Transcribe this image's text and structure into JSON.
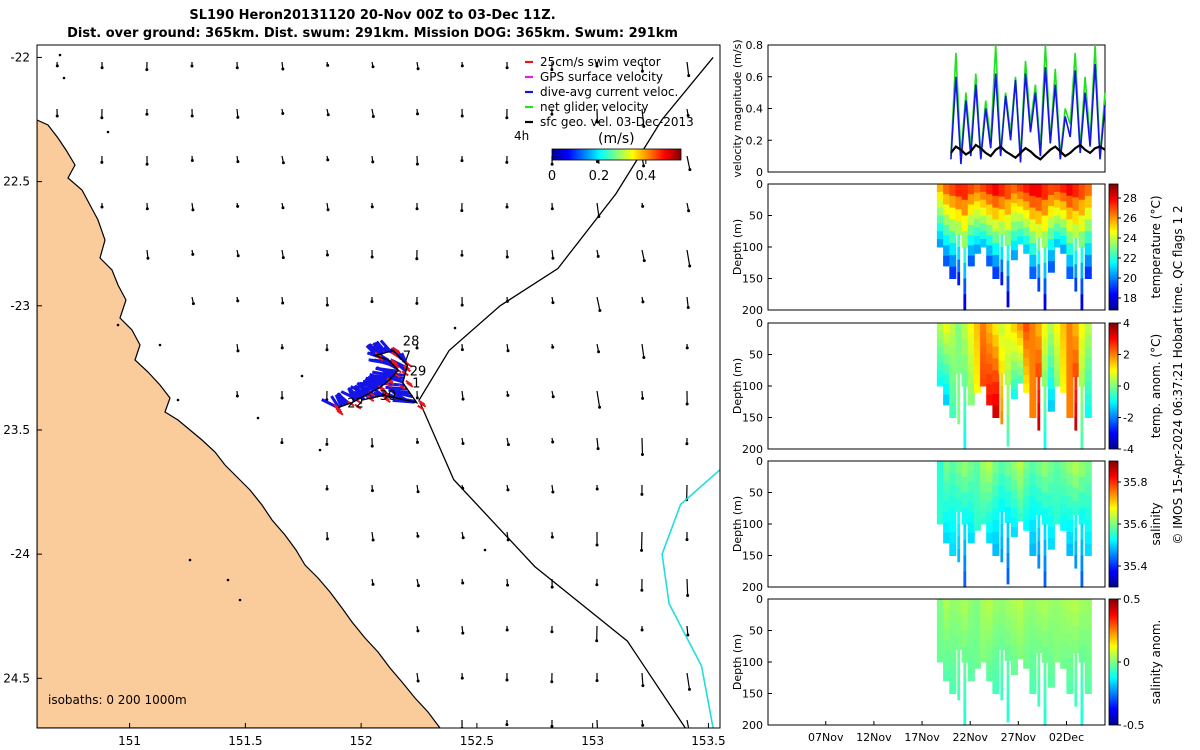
{
  "header": {
    "title_line1": "SL190 Heron20131120 20-Nov 00Z to 03-Dec 11Z.",
    "title_line2": "Dist. over ground: 365km. Dist. swum: 291km. Mission DOG: 365km. Swum: 291km"
  },
  "credit": "© IMOS 15-Apr-2024 06:37:21 Hobart time. QC flags 1  2",
  "colors": {
    "land": "#FACB9B",
    "cyan": "#22DDDD",
    "swim": "#E8141E",
    "gps": "#E020E0",
    "dive": "#1414E6",
    "net": "#21E021"
  },
  "chart_data": [
    {
      "type": "map",
      "name": "glider-track-map",
      "xlim": [
        150.6,
        153.55
      ],
      "ylim": [
        -24.7,
        -21.95
      ],
      "xticks": [
        151,
        151.5,
        152,
        152.5,
        153,
        153.5
      ],
      "xtick_labels": [
        "151",
        "151.5",
        "152",
        "152.5",
        "153",
        "153.5"
      ],
      "yticks": [
        -22,
        -22.5,
        -23,
        -23.5,
        -24,
        -24.5
      ],
      "ytick_labels": [
        "-22",
        "22.5",
        "-23",
        "23.5",
        "-24",
        "24.5"
      ],
      "legend": [
        {
          "label": "25cm/s swim vector",
          "color": "#E8141E"
        },
        {
          "label": "GPS surface velocity",
          "color": "#E020E0"
        },
        {
          "label": "dive-avg current veloc.",
          "color": "#1414E6"
        },
        {
          "label": "net glider velocity",
          "color": "#21E021"
        },
        {
          "label": "sfc geo. vel. 03-Dec-2013",
          "color": "#000000"
        }
      ],
      "legend_time_label": "4h",
      "colorbar": {
        "title": "(m/s)",
        "ticks": [
          0,
          0.2,
          0.4
        ],
        "tick_labels": [
          "0",
          "0.2",
          "0.4"
        ],
        "range": [
          0,
          0.55
        ]
      },
      "isobaths_label": "isobaths: 0   200  1000m",
      "track_day_labels": [
        {
          "text": "28",
          "lon": 152.18,
          "lat": -23.16
        },
        {
          "text": "7",
          "lon": 152.18,
          "lat": -23.22
        },
        {
          "text": "29",
          "lon": 152.21,
          "lat": -23.28
        },
        {
          "text": "1",
          "lon": 152.22,
          "lat": -23.33
        },
        {
          "text": "30",
          "lon": 152.08,
          "lat": -23.38
        },
        {
          "text": "22",
          "lon": 151.94,
          "lat": -23.41
        }
      ],
      "track_points": [
        [
          151.9,
          -23.41
        ],
        [
          151.96,
          -23.39
        ],
        [
          152.02,
          -23.36
        ],
        [
          152.08,
          -23.33
        ],
        [
          152.12,
          -23.3
        ],
        [
          152.16,
          -23.26
        ],
        [
          152.12,
          -23.22
        ],
        [
          152.06,
          -23.2
        ],
        [
          152.14,
          -23.18
        ],
        [
          152.2,
          -23.24
        ],
        [
          152.18,
          -23.31
        ],
        [
          152.24,
          -23.39
        ],
        [
          152.1,
          -23.36
        ],
        [
          152.0,
          -23.38
        ]
      ],
      "isobath_1000m": [
        [
          153.52,
          -22.0
        ],
        [
          153.3,
          -22.25
        ],
        [
          153.1,
          -22.55
        ],
        [
          152.85,
          -22.85
        ],
        [
          152.6,
          -23.0
        ],
        [
          152.38,
          -23.18
        ],
        [
          152.25,
          -23.38
        ],
        [
          152.4,
          -23.7
        ],
        [
          152.75,
          -24.05
        ],
        [
          153.15,
          -24.35
        ],
        [
          153.4,
          -24.7
        ]
      ],
      "cyan_contour": [
        [
          153.55,
          -23.66
        ],
        [
          153.38,
          -23.8
        ],
        [
          153.3,
          -24.0
        ],
        [
          153.33,
          -24.2
        ],
        [
          153.47,
          -24.45
        ],
        [
          153.52,
          -24.7
        ]
      ]
    },
    {
      "type": "line",
      "name": "velocity-magnitude",
      "ylabel": "velocity magnitude (m/s)",
      "ylim": [
        0,
        0.8
      ],
      "yticks": [
        0,
        0.2,
        0.4,
        0.6,
        0.8
      ],
      "ytick_labels": [
        "0",
        "0.2",
        "0.4",
        "0.6",
        "0.8"
      ],
      "x_range_days": [
        0,
        35
      ],
      "data_start_day": 19,
      "data_end_day": 35,
      "series": [
        {
          "name": "net glider velocity",
          "color": "#21E021",
          "values": [
            0.1,
            0.75,
            0.1,
            0.5,
            0.15,
            0.62,
            0.1,
            0.45,
            0.2,
            0.8,
            0.12,
            0.5,
            0.25,
            0.6,
            0.1,
            0.7,
            0.3,
            0.55,
            0.15,
            0.8,
            0.2,
            0.65,
            0.1,
            0.4,
            0.3,
            0.75,
            0.15,
            0.6,
            0.2,
            0.8,
            0.1,
            0.5
          ]
        },
        {
          "name": "dive-avg current veloc.",
          "color": "#1414E6",
          "values": [
            0.08,
            0.6,
            0.05,
            0.45,
            0.1,
            0.55,
            0.08,
            0.4,
            0.15,
            0.62,
            0.1,
            0.48,
            0.2,
            0.58,
            0.06,
            0.62,
            0.25,
            0.5,
            0.1,
            0.66,
            0.18,
            0.55,
            0.08,
            0.35,
            0.22,
            0.64,
            0.12,
            0.5,
            0.16,
            0.68,
            0.08,
            0.42
          ]
        },
        {
          "name": "sfc geo. vel.",
          "color": "#000000",
          "values": [
            0.12,
            0.16,
            0.14,
            0.11,
            0.13,
            0.17,
            0.15,
            0.12,
            0.1,
            0.14,
            0.16,
            0.13,
            0.11,
            0.09,
            0.12,
            0.15,
            0.13,
            0.1,
            0.08,
            0.11,
            0.14,
            0.16,
            0.13,
            0.1,
            0.12,
            0.15,
            0.17,
            0.14,
            0.12,
            0.15,
            0.16,
            0.14
          ]
        }
      ]
    },
    {
      "type": "heatmap",
      "name": "temperature-section",
      "ylabel": "Depth (m)",
      "cbar_label": "temperature (°C)",
      "ylim": [
        200,
        0
      ],
      "yticks": [
        0,
        50,
        100,
        150,
        200
      ],
      "ytick_labels": [
        "0",
        "50",
        "100",
        "150",
        "200"
      ],
      "cbar_range": [
        16.8,
        29.4
      ],
      "cbar_ticks": [
        18,
        20,
        22,
        24,
        26,
        28
      ],
      "cbar_tick_labels": [
        "18",
        "20",
        "22",
        "24",
        "26",
        "28"
      ],
      "colormap": "jet",
      "x_range_days": [
        0,
        35
      ],
      "data_start_day": 19,
      "profile_max_depth": [
        100,
        130,
        150,
        160,
        200,
        130,
        110,
        100,
        130,
        150,
        160,
        195,
        120,
        95,
        110,
        150,
        170,
        200,
        140,
        100,
        110,
        150,
        170,
        200,
        150
      ],
      "surface_values": [
        26,
        27,
        27.5,
        28,
        28,
        27.5,
        27,
        27.5,
        28,
        28.5,
        28,
        27.5,
        27,
        27.5,
        28,
        28.5,
        28.5,
        28,
        27.5,
        27.5,
        28,
        28.5,
        28,
        27.5,
        27
      ],
      "bottom_values": [
        20,
        19,
        18.5,
        18,
        17.5,
        19,
        20,
        20.5,
        19,
        18.5,
        18,
        17.5,
        20,
        21,
        20.5,
        19,
        18.5,
        17.5,
        19,
        20.5,
        20,
        19,
        18.5,
        17.5,
        18.5
      ]
    },
    {
      "type": "heatmap",
      "name": "temperature-anomaly-section",
      "ylabel": "Depth (m)",
      "cbar_label": "temp. anom. (°C)",
      "ylim": [
        200,
        0
      ],
      "yticks": [
        0,
        50,
        100,
        150,
        200
      ],
      "ytick_labels": [
        "0",
        "50",
        "100",
        "150",
        "200"
      ],
      "cbar_range": [
        -4,
        4
      ],
      "cbar_ticks": [
        -4,
        -2,
        0,
        2,
        4
      ],
      "cbar_tick_labels": [
        "-4",
        "-2",
        "0",
        "2",
        "4"
      ],
      "colormap": "jet",
      "x_range_days": [
        0,
        35
      ],
      "data_start_day": 19,
      "profile_max_depth": [
        100,
        130,
        150,
        160,
        200,
        130,
        110,
        100,
        130,
        150,
        160,
        195,
        120,
        95,
        110,
        150,
        170,
        200,
        140,
        100,
        110,
        150,
        170,
        200,
        150
      ],
      "surface_values": [
        0.5,
        1,
        0.5,
        0,
        0.5,
        1,
        1.5,
        2,
        1.5,
        1,
        0.5,
        1,
        1.5,
        2,
        2.5,
        2,
        1.5,
        1,
        0.5,
        1,
        1.5,
        2,
        1.5,
        1,
        0.5
      ],
      "bottom_values": [
        -1,
        -1.5,
        -0.5,
        0,
        -1,
        0,
        1,
        2.5,
        3,
        3.5,
        2,
        -0.5,
        -1,
        -0.5,
        1,
        2,
        3.5,
        -1,
        -1.5,
        0,
        1,
        2,
        3.5,
        -0.5,
        -1
      ]
    },
    {
      "type": "heatmap",
      "name": "salinity-section",
      "ylabel": "Depth (m)",
      "cbar_label": "salinity",
      "ylim": [
        200,
        0
      ],
      "yticks": [
        0,
        50,
        100,
        150,
        200
      ],
      "ytick_labels": [
        "0",
        "50",
        "100",
        "150",
        "200"
      ],
      "cbar_range": [
        35.3,
        35.9
      ],
      "cbar_ticks": [
        35.4,
        35.6,
        35.8
      ],
      "cbar_tick_labels": [
        "35.4",
        "35.6",
        "35.8"
      ],
      "colormap": "jet",
      "x_range_days": [
        0,
        35
      ],
      "data_start_day": 19,
      "profile_max_depth": [
        100,
        130,
        150,
        160,
        200,
        130,
        110,
        100,
        130,
        150,
        160,
        195,
        120,
        95,
        110,
        150,
        170,
        200,
        140,
        100,
        110,
        150,
        170,
        200,
        150
      ],
      "surface_values": [
        35.55,
        35.6,
        35.58,
        35.6,
        35.62,
        35.6,
        35.58,
        35.62,
        35.64,
        35.6,
        35.58,
        35.6,
        35.62,
        35.64,
        35.6,
        35.58,
        35.6,
        35.62,
        35.6,
        35.58,
        35.6,
        35.62,
        35.64,
        35.62,
        35.6
      ],
      "bottom_values": [
        35.55,
        35.5,
        35.5,
        35.48,
        35.42,
        35.5,
        35.55,
        35.55,
        35.5,
        35.48,
        35.46,
        35.42,
        35.5,
        35.55,
        35.52,
        35.48,
        35.45,
        35.42,
        35.5,
        35.55,
        35.52,
        35.48,
        35.45,
        35.42,
        35.5
      ]
    },
    {
      "type": "heatmap",
      "name": "salinity-anomaly-section",
      "ylabel": "Depth (m)",
      "cbar_label": "salinity anom.",
      "ylim": [
        200,
        0
      ],
      "yticks": [
        0,
        50,
        100,
        150,
        200
      ],
      "ytick_labels": [
        "0",
        "50",
        "100",
        "150",
        "200"
      ],
      "cbar_range": [
        -0.5,
        0.5
      ],
      "cbar_ticks": [
        -0.5,
        0,
        0.5
      ],
      "cbar_tick_labels": [
        "-0.5",
        "0",
        "0.5"
      ],
      "colormap": "jet",
      "x_range_days": [
        0,
        35
      ],
      "data_start_day": 19,
      "profile_max_depth": [
        100,
        130,
        150,
        160,
        200,
        130,
        110,
        100,
        130,
        150,
        160,
        195,
        120,
        95,
        110,
        150,
        170,
        200,
        140,
        100,
        110,
        150,
        170,
        200,
        150
      ],
      "surface_values": [
        0.0,
        0.05,
        0.02,
        0.03,
        0.05,
        0.02,
        0.0,
        0.04,
        0.06,
        0.03,
        0.02,
        0.04,
        0.05,
        0.06,
        0.03,
        0.02,
        0.04,
        0.05,
        0.03,
        0.02,
        0.04,
        0.05,
        0.06,
        0.04,
        0.03
      ],
      "bottom_values": [
        -0.02,
        -0.05,
        -0.05,
        -0.06,
        -0.1,
        -0.04,
        -0.02,
        0.0,
        -0.04,
        -0.06,
        -0.07,
        -0.1,
        -0.03,
        0.0,
        -0.02,
        -0.05,
        -0.07,
        -0.1,
        -0.04,
        0.0,
        -0.02,
        -0.05,
        -0.07,
        -0.1,
        -0.04
      ],
      "xticks_days": [
        6,
        11,
        16,
        21,
        26,
        31
      ],
      "xtick_labels": [
        "07Nov",
        "12Nov",
        "17Nov",
        "22Nov",
        "27Nov",
        "02Dec"
      ]
    }
  ]
}
